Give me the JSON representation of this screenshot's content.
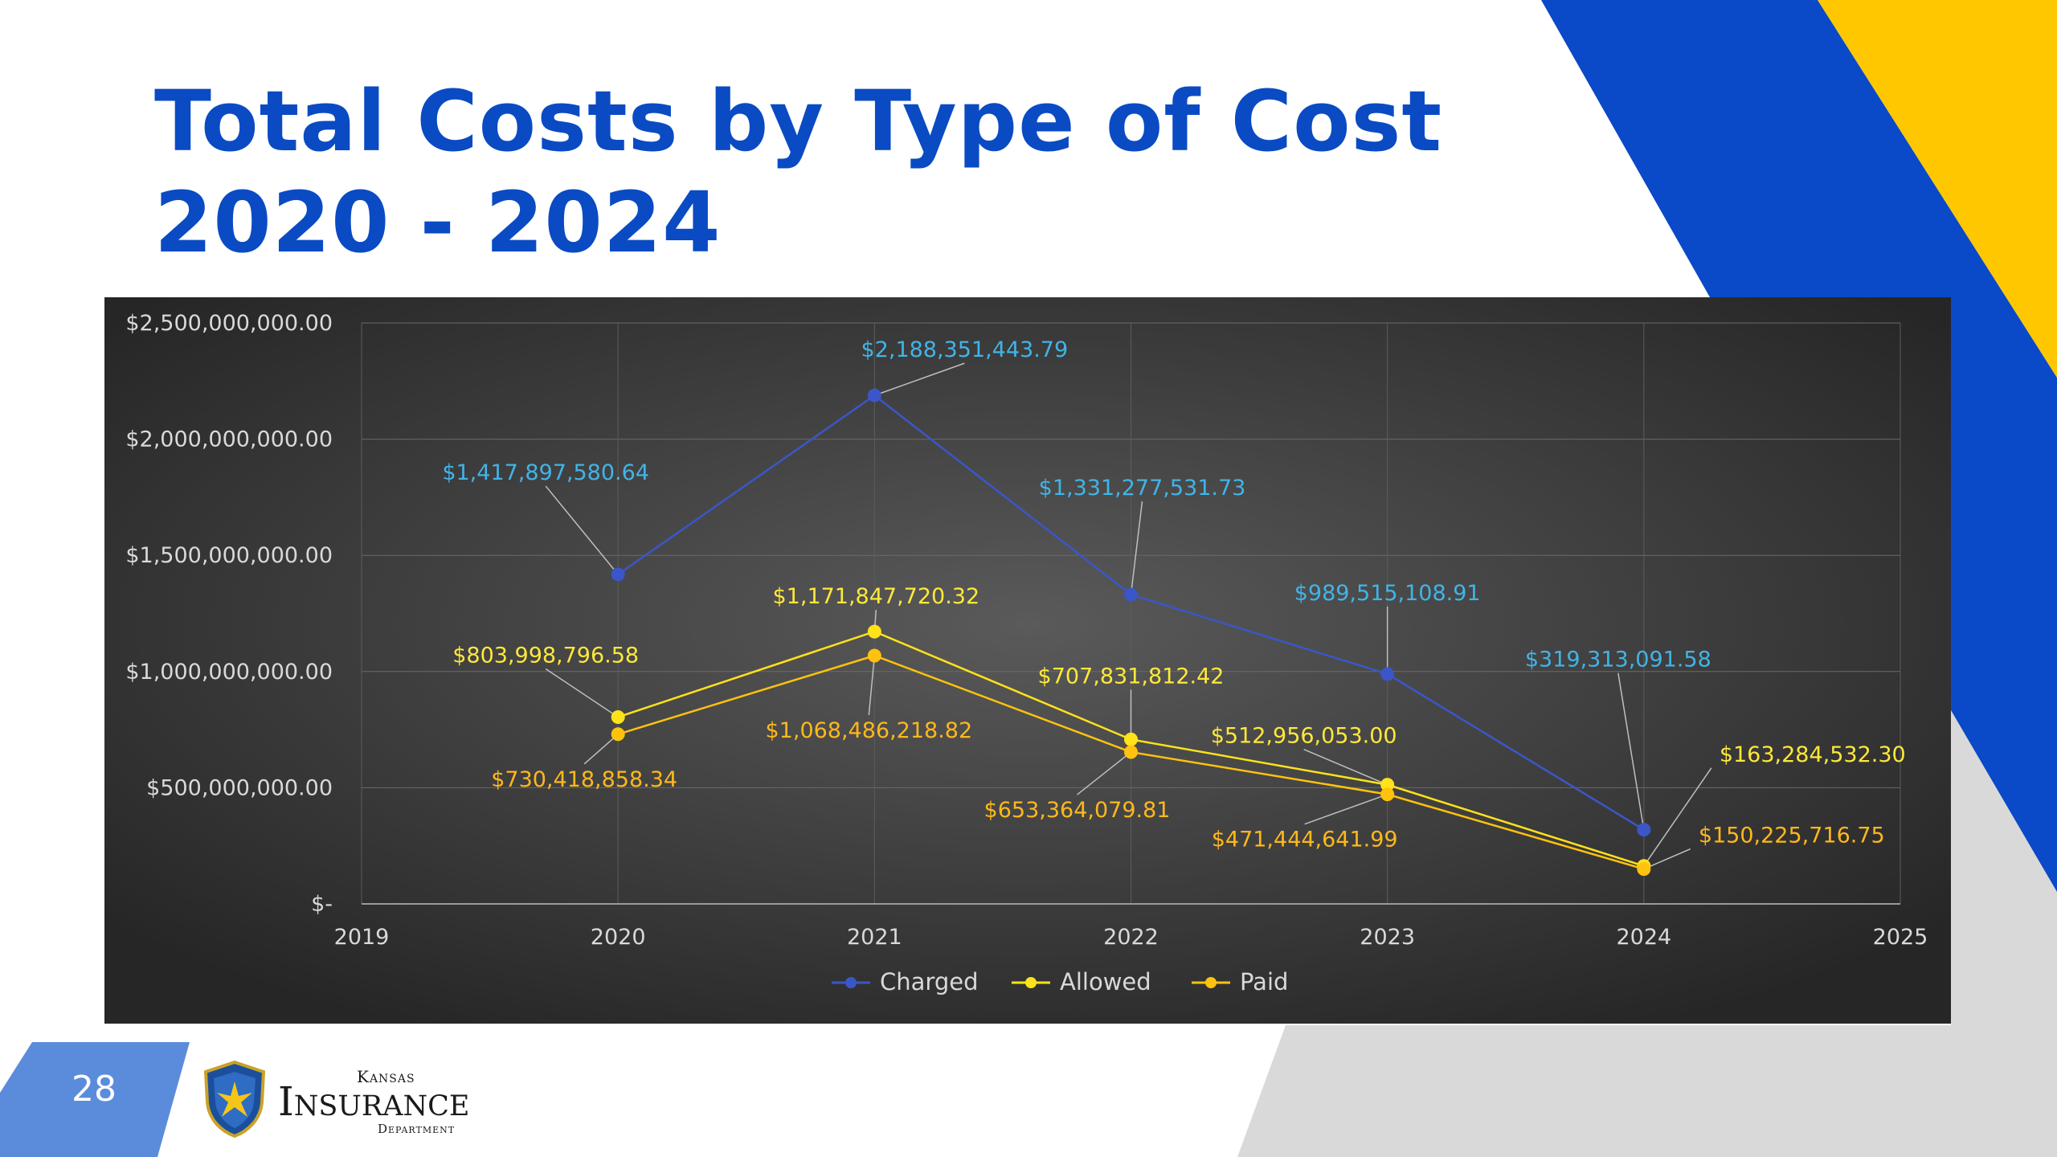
{
  "slide": {
    "title_line1": "Total Costs by Type of Cost",
    "title_line2": "2020 - 2024",
    "page_number": "28"
  },
  "logo": {
    "line1": "Kansas",
    "line2": "Insurance",
    "line3": "Department",
    "icon": "shield-icon"
  },
  "colors": {
    "title": "#0a4bc4",
    "brand_blue": "#0a49c7",
    "brand_yellow": "#ffc700",
    "charged": "#3b56c8",
    "charged_label": "#41b4e8",
    "allowed": "#ffe21a",
    "allowed_label": "#ffe83a",
    "paid": "#ffc20e",
    "paid_label": "#ffb81c",
    "chart_bg": "#3e3e3e"
  },
  "chart_data": {
    "type": "line",
    "x_ticks": [
      "2019",
      "2020",
      "2021",
      "2022",
      "2023",
      "2024",
      "2025"
    ],
    "x_range": [
      2019,
      2025
    ],
    "y_range": [
      0,
      2500000000
    ],
    "y_ticks": [
      {
        "value": 0,
        "label": "$-"
      },
      {
        "value": 500000000,
        "label": "$500,000,000.00"
      },
      {
        "value": 1000000000,
        "label": "$1,000,000,000.00"
      },
      {
        "value": 1500000000,
        "label": "$1,500,000,000.00"
      },
      {
        "value": 2000000000,
        "label": "$2,000,000,000.00"
      },
      {
        "value": 2500000000,
        "label": "$2,500,000,000.00"
      }
    ],
    "grid": true,
    "legend_position": "bottom",
    "series": [
      {
        "name": "Charged",
        "x": [
          2020,
          2021,
          2022,
          2023,
          2024
        ],
        "values": [
          1417897580.64,
          2188351443.79,
          1331277531.73,
          989515108.91,
          319313091.58
        ],
        "labels": [
          "$1,417,897,580.64",
          "$2,188,351,443.79",
          "$1,331,277,531.73",
          "$989,515,108.91",
          "$319,313,091.58"
        ]
      },
      {
        "name": "Allowed",
        "x": [
          2020,
          2021,
          2022,
          2023,
          2024
        ],
        "values": [
          803998796.58,
          1171847720.32,
          707831812.42,
          512956053.0,
          163284532.3
        ],
        "labels": [
          "$803,998,796.58",
          "$1,171,847,720.32",
          "$707,831,812.42",
          "$512,956,053.00",
          "$163,284,532.30"
        ]
      },
      {
        "name": "Paid",
        "x": [
          2020,
          2021,
          2022,
          2023,
          2024
        ],
        "values": [
          730418858.34,
          1068486218.82,
          653364079.81,
          471444641.99,
          150225716.75
        ],
        "labels": [
          "$730,418,858.34",
          "$1,068,486,218.82",
          "$653,364,079.81",
          "$471,444,641.99",
          "$150,225,716.75"
        ]
      }
    ]
  }
}
